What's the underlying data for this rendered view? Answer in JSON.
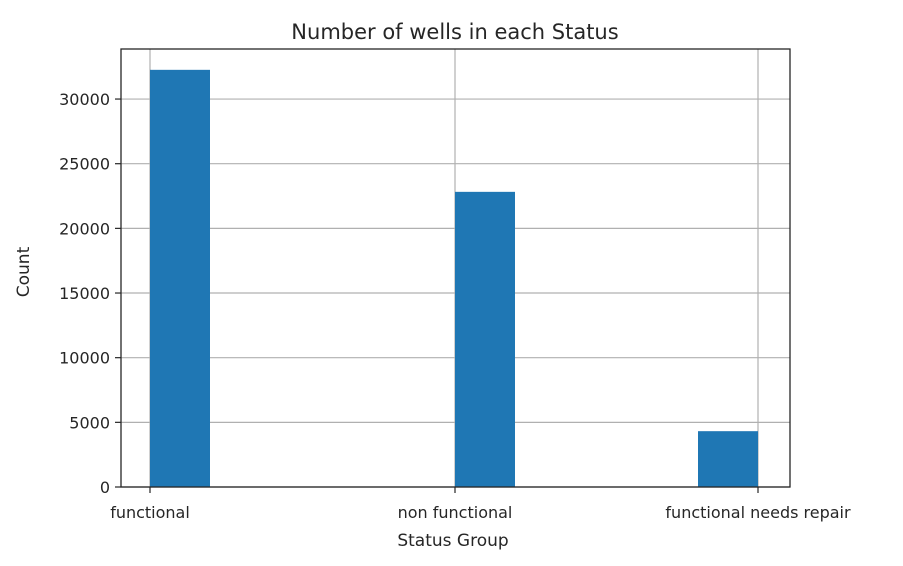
{
  "chart_data": {
    "type": "bar",
    "title": "Number of wells in each Status",
    "xlabel": "Status Group",
    "ylabel": "Count",
    "categories": [
      "functional",
      "non functional",
      "functional needs repair"
    ],
    "values": [
      32259,
      22824,
      4317
    ],
    "ylim": [
      0,
      33870
    ],
    "yticks": [
      0,
      5000,
      10000,
      15000,
      20000,
      25000,
      30000
    ],
    "ytick_labels": [
      "0",
      "5000",
      "10000",
      "15000",
      "20000",
      "25000",
      "30000"
    ],
    "bar_color": "#1f77b4",
    "grid": true
  }
}
